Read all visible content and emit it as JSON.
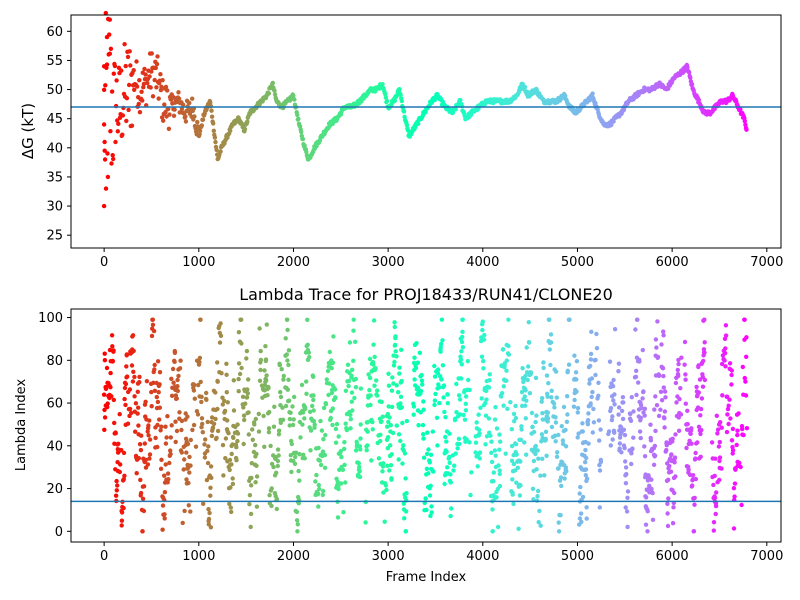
{
  "chart_data": [
    {
      "type": "scatter",
      "title": "",
      "xlabel": "",
      "ylabel": "ΔG (kT)",
      "xlim": [
        -350,
        7150
      ],
      "ylim": [
        22.8,
        62.8
      ],
      "xticks": [
        0,
        1000,
        2000,
        3000,
        4000,
        5000,
        6000,
        7000
      ],
      "xtick_labels": [
        "0",
        "1000",
        "2000",
        "3000",
        "4000",
        "5000",
        "6000",
        "7000"
      ],
      "yticks": [
        25,
        30,
        35,
        40,
        45,
        50,
        55,
        60
      ],
      "ytick_labels": [
        "25",
        "30",
        "35",
        "40",
        "45",
        "50",
        "55",
        "60"
      ],
      "hline": 47.0,
      "hline_color": "#1f77b4",
      "colormap": "rainbow",
      "point_color_by": "frame index",
      "frame_max": 6800,
      "grid": false,
      "series": [
        {
          "x": [
            0,
            40,
            80,
            120,
            160,
            200,
            260,
            320,
            380,
            440,
            500,
            560,
            620,
            700,
            780,
            860,
            940,
            1000,
            1060,
            1120,
            1160,
            1200,
            1240,
            1300,
            1360,
            1420,
            1480,
            1540,
            1600,
            1660,
            1720,
            1780,
            1820,
            1880,
            1940,
            2000,
            2060,
            2120,
            2160,
            2220,
            2300,
            2380,
            2460,
            2540,
            2620,
            2700,
            2760,
            2820,
            2880,
            2940,
            3000,
            3060,
            3120,
            3180,
            3220,
            3300,
            3380,
            3460,
            3520,
            3600,
            3680,
            3760,
            3820,
            3880,
            3960,
            4040,
            4120,
            4200,
            4280,
            4360,
            4420,
            4480,
            4560,
            4640,
            4720,
            4780,
            4860,
            4920,
            4980,
            5040,
            5100,
            5160,
            5220,
            5280,
            5340,
            5400,
            5460,
            5540,
            5620,
            5700,
            5780,
            5860,
            5940,
            6020,
            6100,
            6160,
            6220,
            6280,
            6340,
            6400,
            6460,
            6520,
            6580,
            6640,
            6700,
            6760,
            6790
          ],
          "y": [
            45,
            50,
            47,
            48,
            46,
            49,
            50,
            52,
            50,
            51,
            53,
            52,
            48,
            47,
            48,
            46,
            47,
            42,
            46,
            48,
            43,
            38,
            40,
            42,
            44,
            45,
            43,
            46,
            47,
            48,
            49,
            51,
            48,
            47,
            48,
            49,
            44,
            40,
            38,
            40,
            42,
            44,
            45,
            47,
            47,
            48,
            49,
            50,
            50,
            51,
            47,
            48,
            50,
            45,
            42,
            44,
            46,
            48,
            49,
            47,
            46,
            48,
            45,
            46,
            47,
            48,
            48,
            48,
            48,
            49,
            51,
            49,
            50,
            48,
            48,
            48,
            49,
            47,
            46,
            47,
            48,
            49,
            46,
            44,
            44,
            45,
            46,
            48,
            49,
            50,
            50,
            51,
            50,
            52,
            53,
            54,
            50,
            48,
            46,
            46,
            47,
            48,
            48,
            49,
            47,
            45,
            43
          ]
        }
      ]
    },
    {
      "type": "scatter",
      "title": "Lambda Trace for PROJ18433/RUN41/CLONE20",
      "xlabel": "Frame Index",
      "ylabel": "Lambda Index",
      "xlim": [
        -350,
        7150
      ],
      "ylim": [
        -5,
        104
      ],
      "xticks": [
        0,
        1000,
        2000,
        3000,
        4000,
        5000,
        6000,
        7000
      ],
      "xtick_labels": [
        "0",
        "1000",
        "2000",
        "3000",
        "4000",
        "5000",
        "6000",
        "7000"
      ],
      "yticks": [
        0,
        20,
        40,
        60,
        80,
        100
      ],
      "ytick_labels": [
        "0",
        "20",
        "40",
        "60",
        "80",
        "100"
      ],
      "hline": 14,
      "hline_color": "#1f77b4",
      "colormap": "rainbow",
      "point_color_by": "frame index",
      "frame_max": 6800,
      "grid": false,
      "lambda_range": [
        0,
        99
      ],
      "sampled_frames": 6800
    }
  ]
}
